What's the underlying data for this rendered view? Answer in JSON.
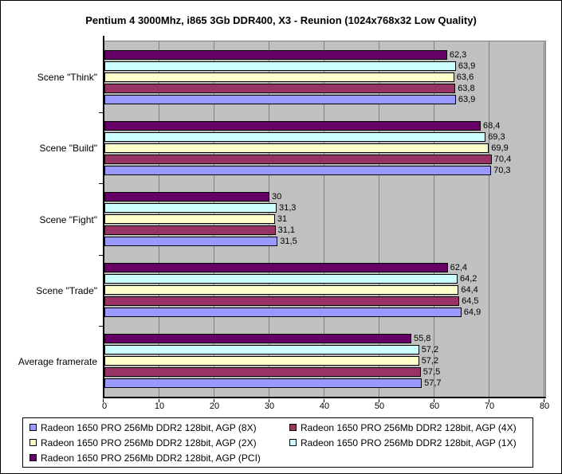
{
  "chart_data": {
    "type": "bar",
    "orientation": "horizontal",
    "title": "Pentium 4 3000Mhz, i865 3Gb DDR400, X3 - Reunion (1024x768x32 Low Quality)",
    "categories": [
      "Scene \"Think\"",
      "Scene \"Build\"",
      "Scene \"Fight\"",
      "Scene \"Trade\"",
      "Average framerate"
    ],
    "series": [
      {
        "name": "Radeon 1650 PRO 256Mb DDR2 128bit, AGP (8X)",
        "color": "#9999FF",
        "values": [
          63.9,
          70.3,
          31.5,
          64.9,
          57.7
        ],
        "labels": [
          "63,9",
          "70,3",
          "31,5",
          "64,9",
          "57,7"
        ]
      },
      {
        "name": "Radeon 1650 PRO 256Mb DDR2 128bit, AGP (4X)",
        "color": "#993366",
        "values": [
          63.8,
          70.4,
          31.1,
          64.5,
          57.5
        ],
        "labels": [
          "63,8",
          "70,4",
          "31,1",
          "64,5",
          "57,5"
        ]
      },
      {
        "name": "Radeon 1650 PRO 256Mb DDR2 128bit, AGP (2X)",
        "color": "#FFFFCC",
        "values": [
          63.6,
          69.9,
          31.0,
          64.4,
          57.2
        ],
        "labels": [
          "63,6",
          "69,9",
          "31",
          "64,4",
          "57,2"
        ]
      },
      {
        "name": "Radeon 1650 PRO 256Mb DDR2 128bit, AGP (1X)",
        "color": "#CCFFFF",
        "values": [
          63.9,
          69.3,
          31.3,
          64.2,
          57.2
        ],
        "labels": [
          "63,9",
          "69,3",
          "31,3",
          "64,2",
          "57,2"
        ]
      },
      {
        "name": "Radeon 1650 PRO 256Mb DDR2 128bit, AGP (PCI)",
        "color": "#660066",
        "values": [
          62.3,
          68.4,
          30.0,
          62.4,
          55.8
        ],
        "labels": [
          "62,3",
          "68,4",
          "30",
          "62,4",
          "55,8"
        ]
      }
    ],
    "bar_order_top_to_bottom_within_group": [
      "AGP (PCI)",
      "AGP (1X)",
      "AGP (2X)",
      "AGP (4X)",
      "AGP (8X)"
    ],
    "xlabel": "",
    "ylabel": "",
    "xlim": [
      0,
      80
    ],
    "x_ticks": [
      0,
      10,
      20,
      30,
      40,
      50,
      60,
      70,
      80
    ],
    "grid": true,
    "legend_position": "bottom",
    "decimal_separator": ",",
    "colors": {
      "plot_background": "#C0C0C0",
      "gridline": "#808080",
      "axis": "#000000",
      "bar_border": "#000000",
      "page_background": "#FFFFFF",
      "text": "#000000"
    }
  }
}
